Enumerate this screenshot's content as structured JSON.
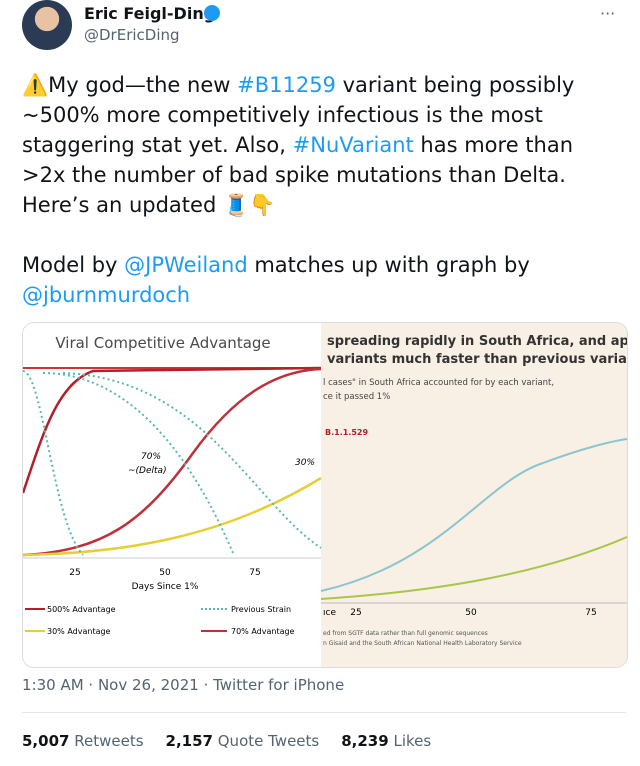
{
  "author": {
    "name": "Eric Feigl-Ding",
    "handle": "@DrEricDing",
    "more": "···"
  },
  "tweet": {
    "lines": [
      [
        {
          "text": "⚠️My god—the new "
        },
        {
          "text": "#B11259",
          "link": true
        },
        {
          "text": " variant being possibly"
        }
      ],
      [
        {
          "text": "~500% more competitively infectious is the most"
        }
      ],
      [
        {
          "text": "staggering stat yet. Also, "
        },
        {
          "text": "#NuVariant",
          "link": true
        },
        {
          "text": " has more than"
        }
      ],
      [
        {
          "text": ">2x the number of bad spike mutations than Delta."
        }
      ],
      [
        {
          "text": "Here’s an updated 🧵👇"
        }
      ],
      [],
      [
        {
          "text": "Model by "
        },
        {
          "text": "@JPWeiland",
          "link": true
        },
        {
          "text": " matches up with graph by"
        }
      ],
      [
        {
          "text": "@jburnmurdoch",
          "link": true
        }
      ]
    ]
  },
  "image": {
    "left": {
      "title": "Viral Competitive Advantage",
      "annotation_delta": "70%",
      "annotation_delta_sub": "~(Delta)",
      "annotation_30": "30%",
      "xticks": [
        "25",
        "50",
        "75"
      ],
      "xlabel": "Days Since 1%",
      "legend": [
        "500% Advantage",
        "Previous Strain",
        "30% Advantage",
        "70% Advantage"
      ]
    },
    "right": {
      "title_lines": [
        "spreading rapidly in South Africa, and appe",
        "variants much faster than previous variant"
      ],
      "subtitle_lines": [
        "l cases\" in South Africa accounted for by each variant,",
        "ce it passed 1%"
      ],
      "series_label": "B.1.1.529",
      "xticks": [
        "ıce",
        "25",
        "50",
        "75"
      ],
      "notes": [
        "ed from SGTF data rather than full genomic sequences",
        "n Gisaid and the South African National Health Laboratory Service"
      ]
    }
  },
  "meta": {
    "time": "1:30 AM · Nov 26, 2021 · Twitter for iPhone"
  },
  "stats": [
    {
      "count": "5,007",
      "label": "Retweets"
    },
    {
      "count": "2,157",
      "label": "Quote Tweets"
    },
    {
      "count": "8,239",
      "label": "Likes"
    }
  ]
}
